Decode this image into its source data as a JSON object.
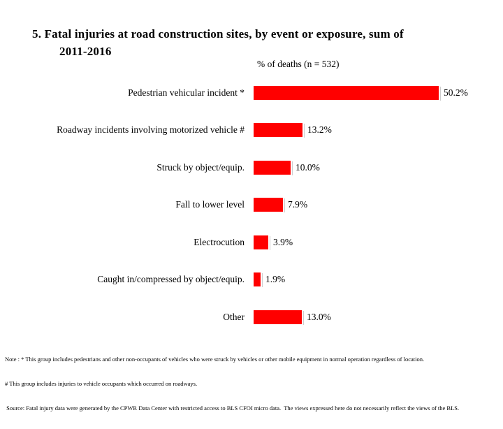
{
  "header": {
    "title_lines": [
      "5. Fatal injuries at road construction sites, by event or exposure, sum of",
      "2011-2016"
    ],
    "subtitle": "% of deaths (n = 532)"
  },
  "chart_data": {
    "type": "bar",
    "orientation": "horizontal",
    "title": "5. Fatal injuries at road construction sites, by event or exposure, sum of 2011-2016",
    "xlabel": "% of deaths (n = 532)",
    "ylabel": "",
    "categories": [
      "Pedestrian vehicular incident *",
      "Roadway incidents involving motorized vehicle #",
      "Struck by object/equip.",
      "Fall to lower level",
      "Electrocution",
      "Caught in/compressed by object/equip.",
      "Other"
    ],
    "values": [
      50.2,
      13.2,
      10.0,
      7.9,
      3.9,
      1.9,
      13.0
    ],
    "value_labels": [
      "50.2%",
      "13.2%",
      "10.0%",
      "7.9%",
      "3.9%",
      "1.9%",
      "13.0%"
    ],
    "bar_color": "#ff0000",
    "data_labels": true,
    "gridlines": false,
    "legend": false
  },
  "colors": {
    "bar": "#ff0000",
    "text": "#000000",
    "background": "#ffffff"
  },
  "notes": [
    "Note : * This group includes pedestrians and other non-occupants of vehicles who were struck by vehicles or other mobile equipment in normal operation regardless of location.",
    "# This group includes injuries to vehicle occupants which occurred on roadways.",
    " Source: Fatal injury data were generated by the CPWR Data Center with restricted access to BLS CFOI micro data.  The views expressed here do not necessarily reflect the views of the BLS."
  ]
}
